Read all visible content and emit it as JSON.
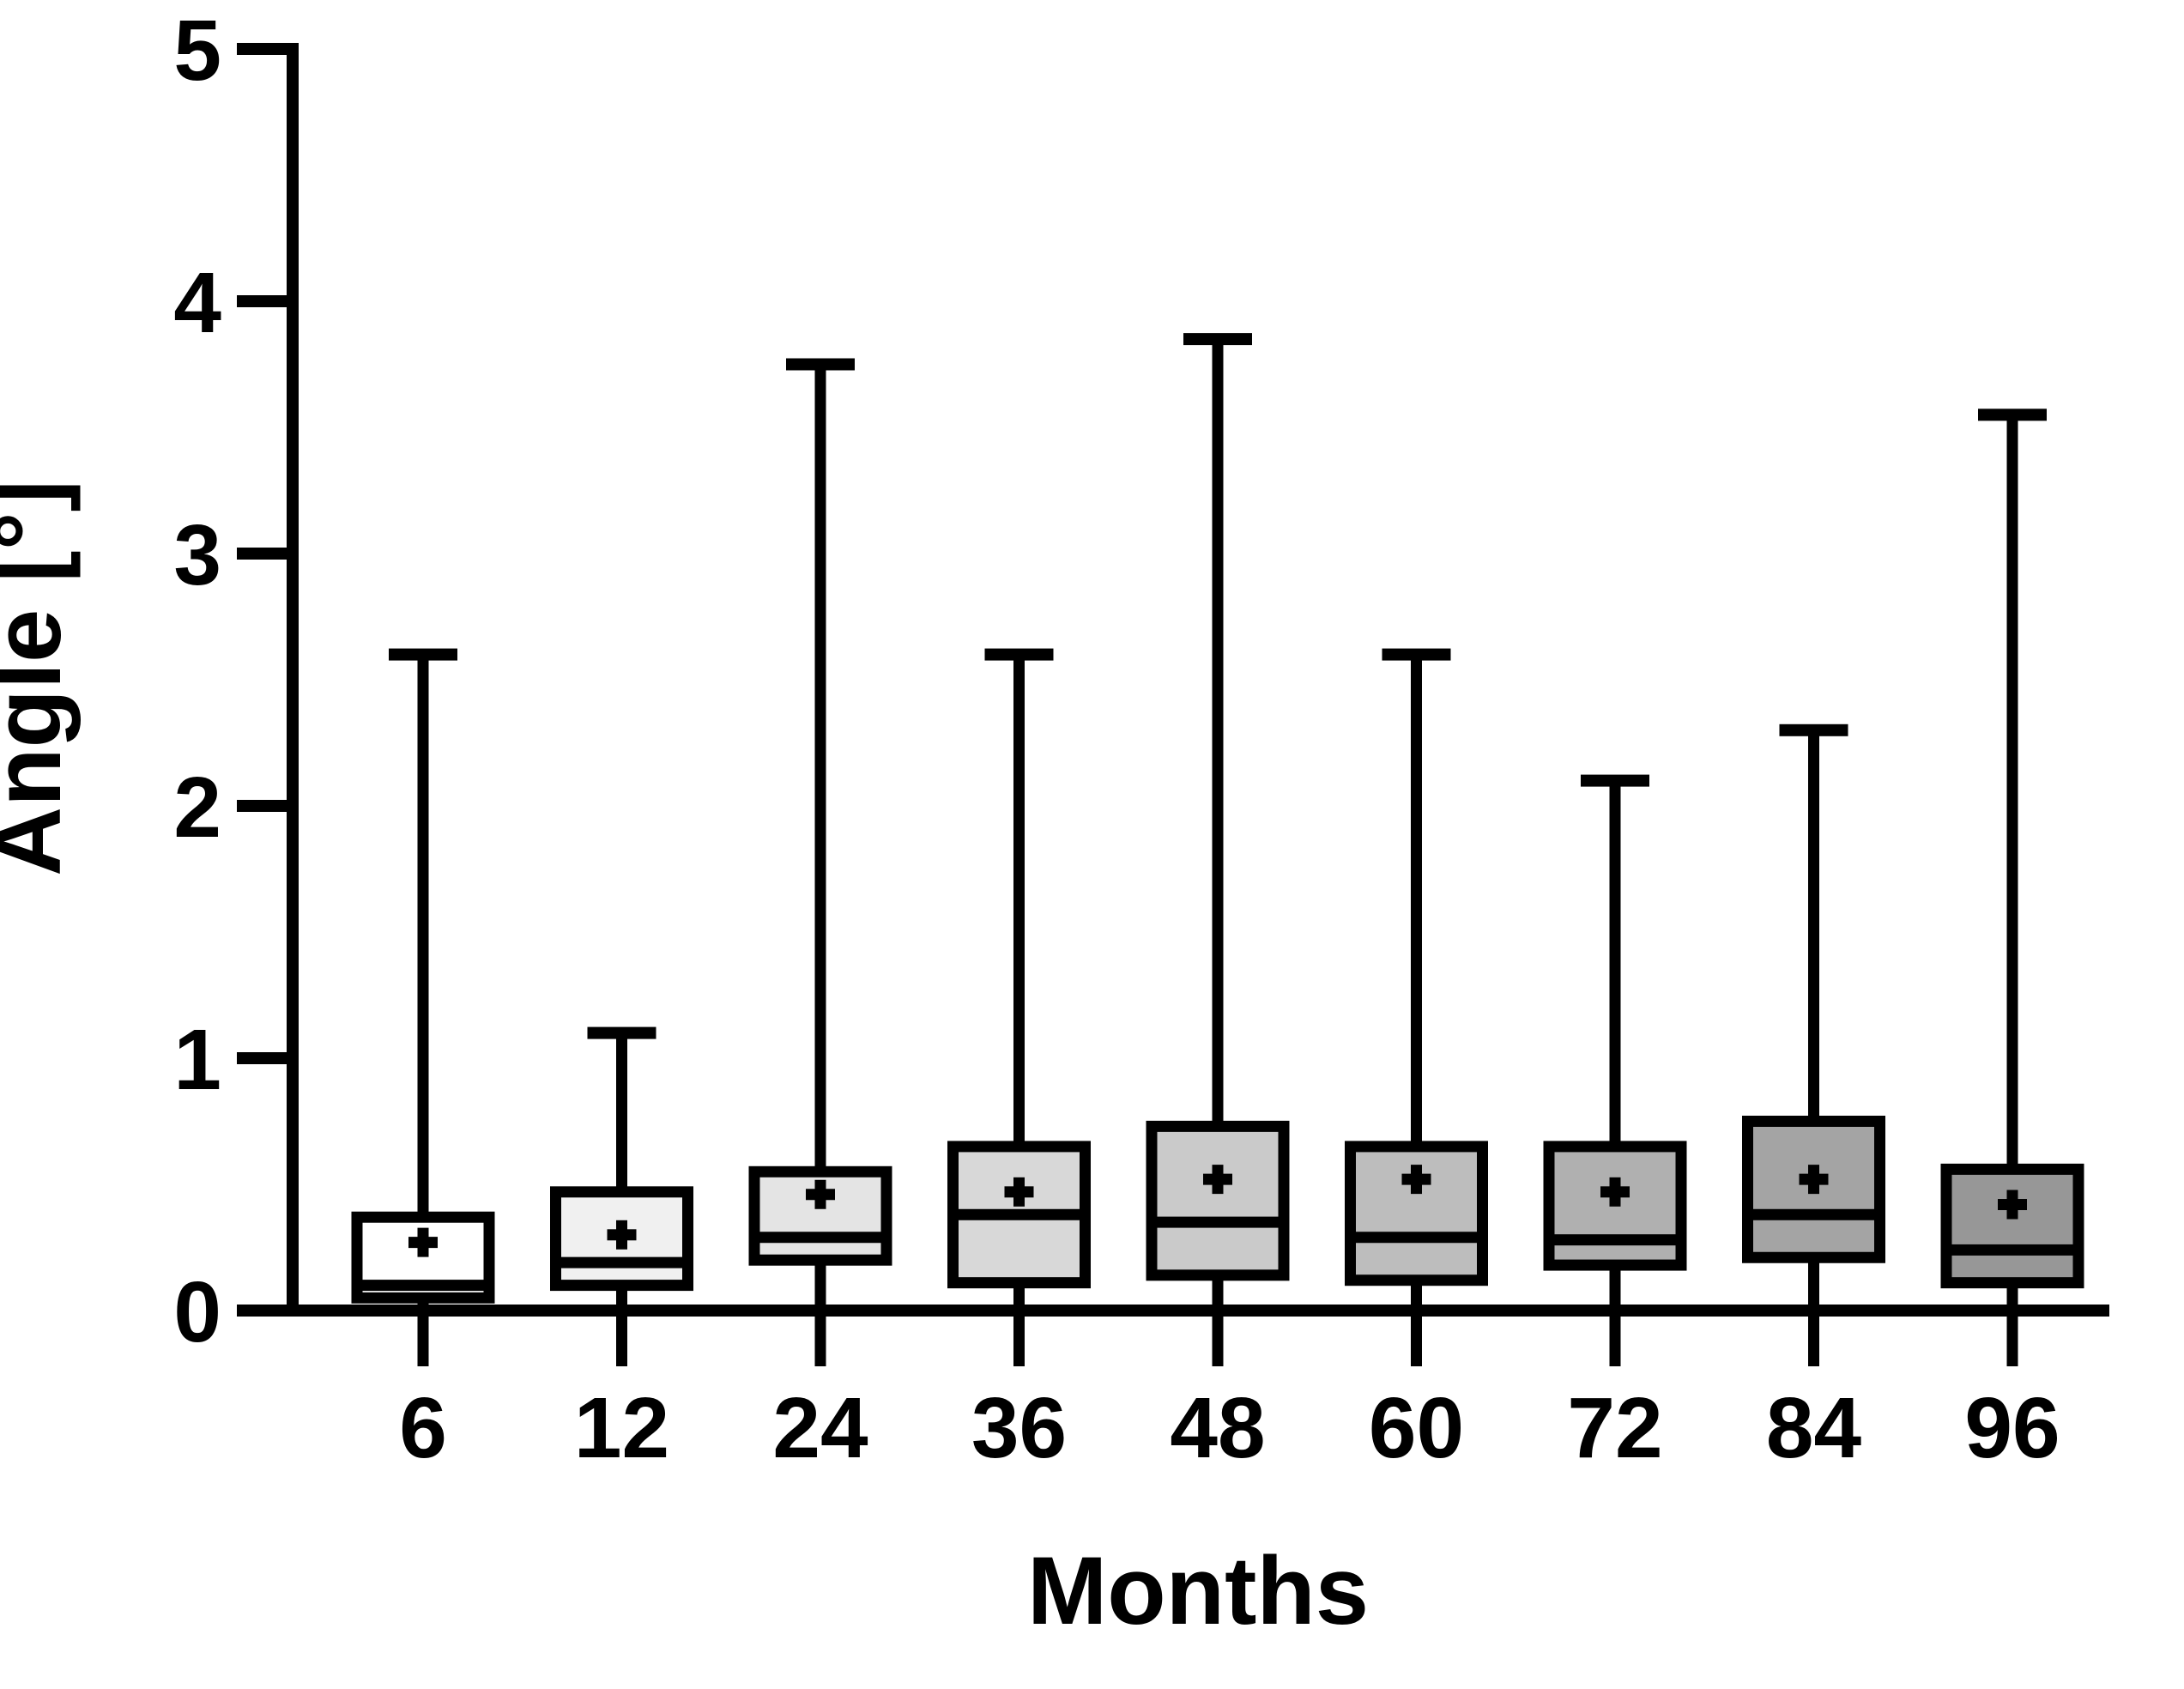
{
  "figure": {
    "ylabel": "Angle [°]",
    "xlabel": "Months"
  },
  "chart_data": {
    "type": "box",
    "title": "",
    "xlabel": "Months",
    "ylabel": "Angle [°]",
    "ylim": [
      0,
      5
    ],
    "yticks": [
      0,
      1,
      2,
      3,
      4,
      5
    ],
    "grid": false,
    "legend": false,
    "categories": [
      "6",
      "12",
      "24",
      "36",
      "48",
      "60",
      "72",
      "84",
      "96"
    ],
    "series": [
      {
        "category": "6",
        "whisker_low": 0,
        "q1": 0.05,
        "median": 0.1,
        "q3": 0.37,
        "whisker_high": 2.6,
        "mean": 0.27,
        "fill": "#ffffff"
      },
      {
        "category": "12",
        "whisker_low": 0,
        "q1": 0.1,
        "median": 0.19,
        "q3": 0.47,
        "whisker_high": 1.1,
        "mean": 0.3,
        "fill": "#f0f0f0"
      },
      {
        "category": "24",
        "whisker_low": 0,
        "q1": 0.2,
        "median": 0.29,
        "q3": 0.55,
        "whisker_high": 3.75,
        "mean": 0.46,
        "fill": "#e4e4e4"
      },
      {
        "category": "36",
        "whisker_low": 0,
        "q1": 0.11,
        "median": 0.38,
        "q3": 0.65,
        "whisker_high": 2.6,
        "mean": 0.47,
        "fill": "#d8d8d8"
      },
      {
        "category": "48",
        "whisker_low": 0,
        "q1": 0.14,
        "median": 0.35,
        "q3": 0.73,
        "whisker_high": 3.85,
        "mean": 0.52,
        "fill": "#cacaca"
      },
      {
        "category": "60",
        "whisker_low": 0,
        "q1": 0.12,
        "median": 0.29,
        "q3": 0.65,
        "whisker_high": 2.6,
        "mean": 0.52,
        "fill": "#bdbdbd"
      },
      {
        "category": "72",
        "whisker_low": 0,
        "q1": 0.18,
        "median": 0.28,
        "q3": 0.65,
        "whisker_high": 2.1,
        "mean": 0.47,
        "fill": "#b0b0b0"
      },
      {
        "category": "84",
        "whisker_low": 0,
        "q1": 0.21,
        "median": 0.38,
        "q3": 0.75,
        "whisker_high": 2.3,
        "mean": 0.52,
        "fill": "#a4a4a4"
      },
      {
        "category": "96",
        "whisker_low": 0,
        "q1": 0.11,
        "median": 0.24,
        "q3": 0.56,
        "whisker_high": 3.55,
        "mean": 0.42,
        "fill": "#979797"
      }
    ],
    "style": {
      "line_color": "#000000",
      "mean_marker": "plus"
    }
  }
}
